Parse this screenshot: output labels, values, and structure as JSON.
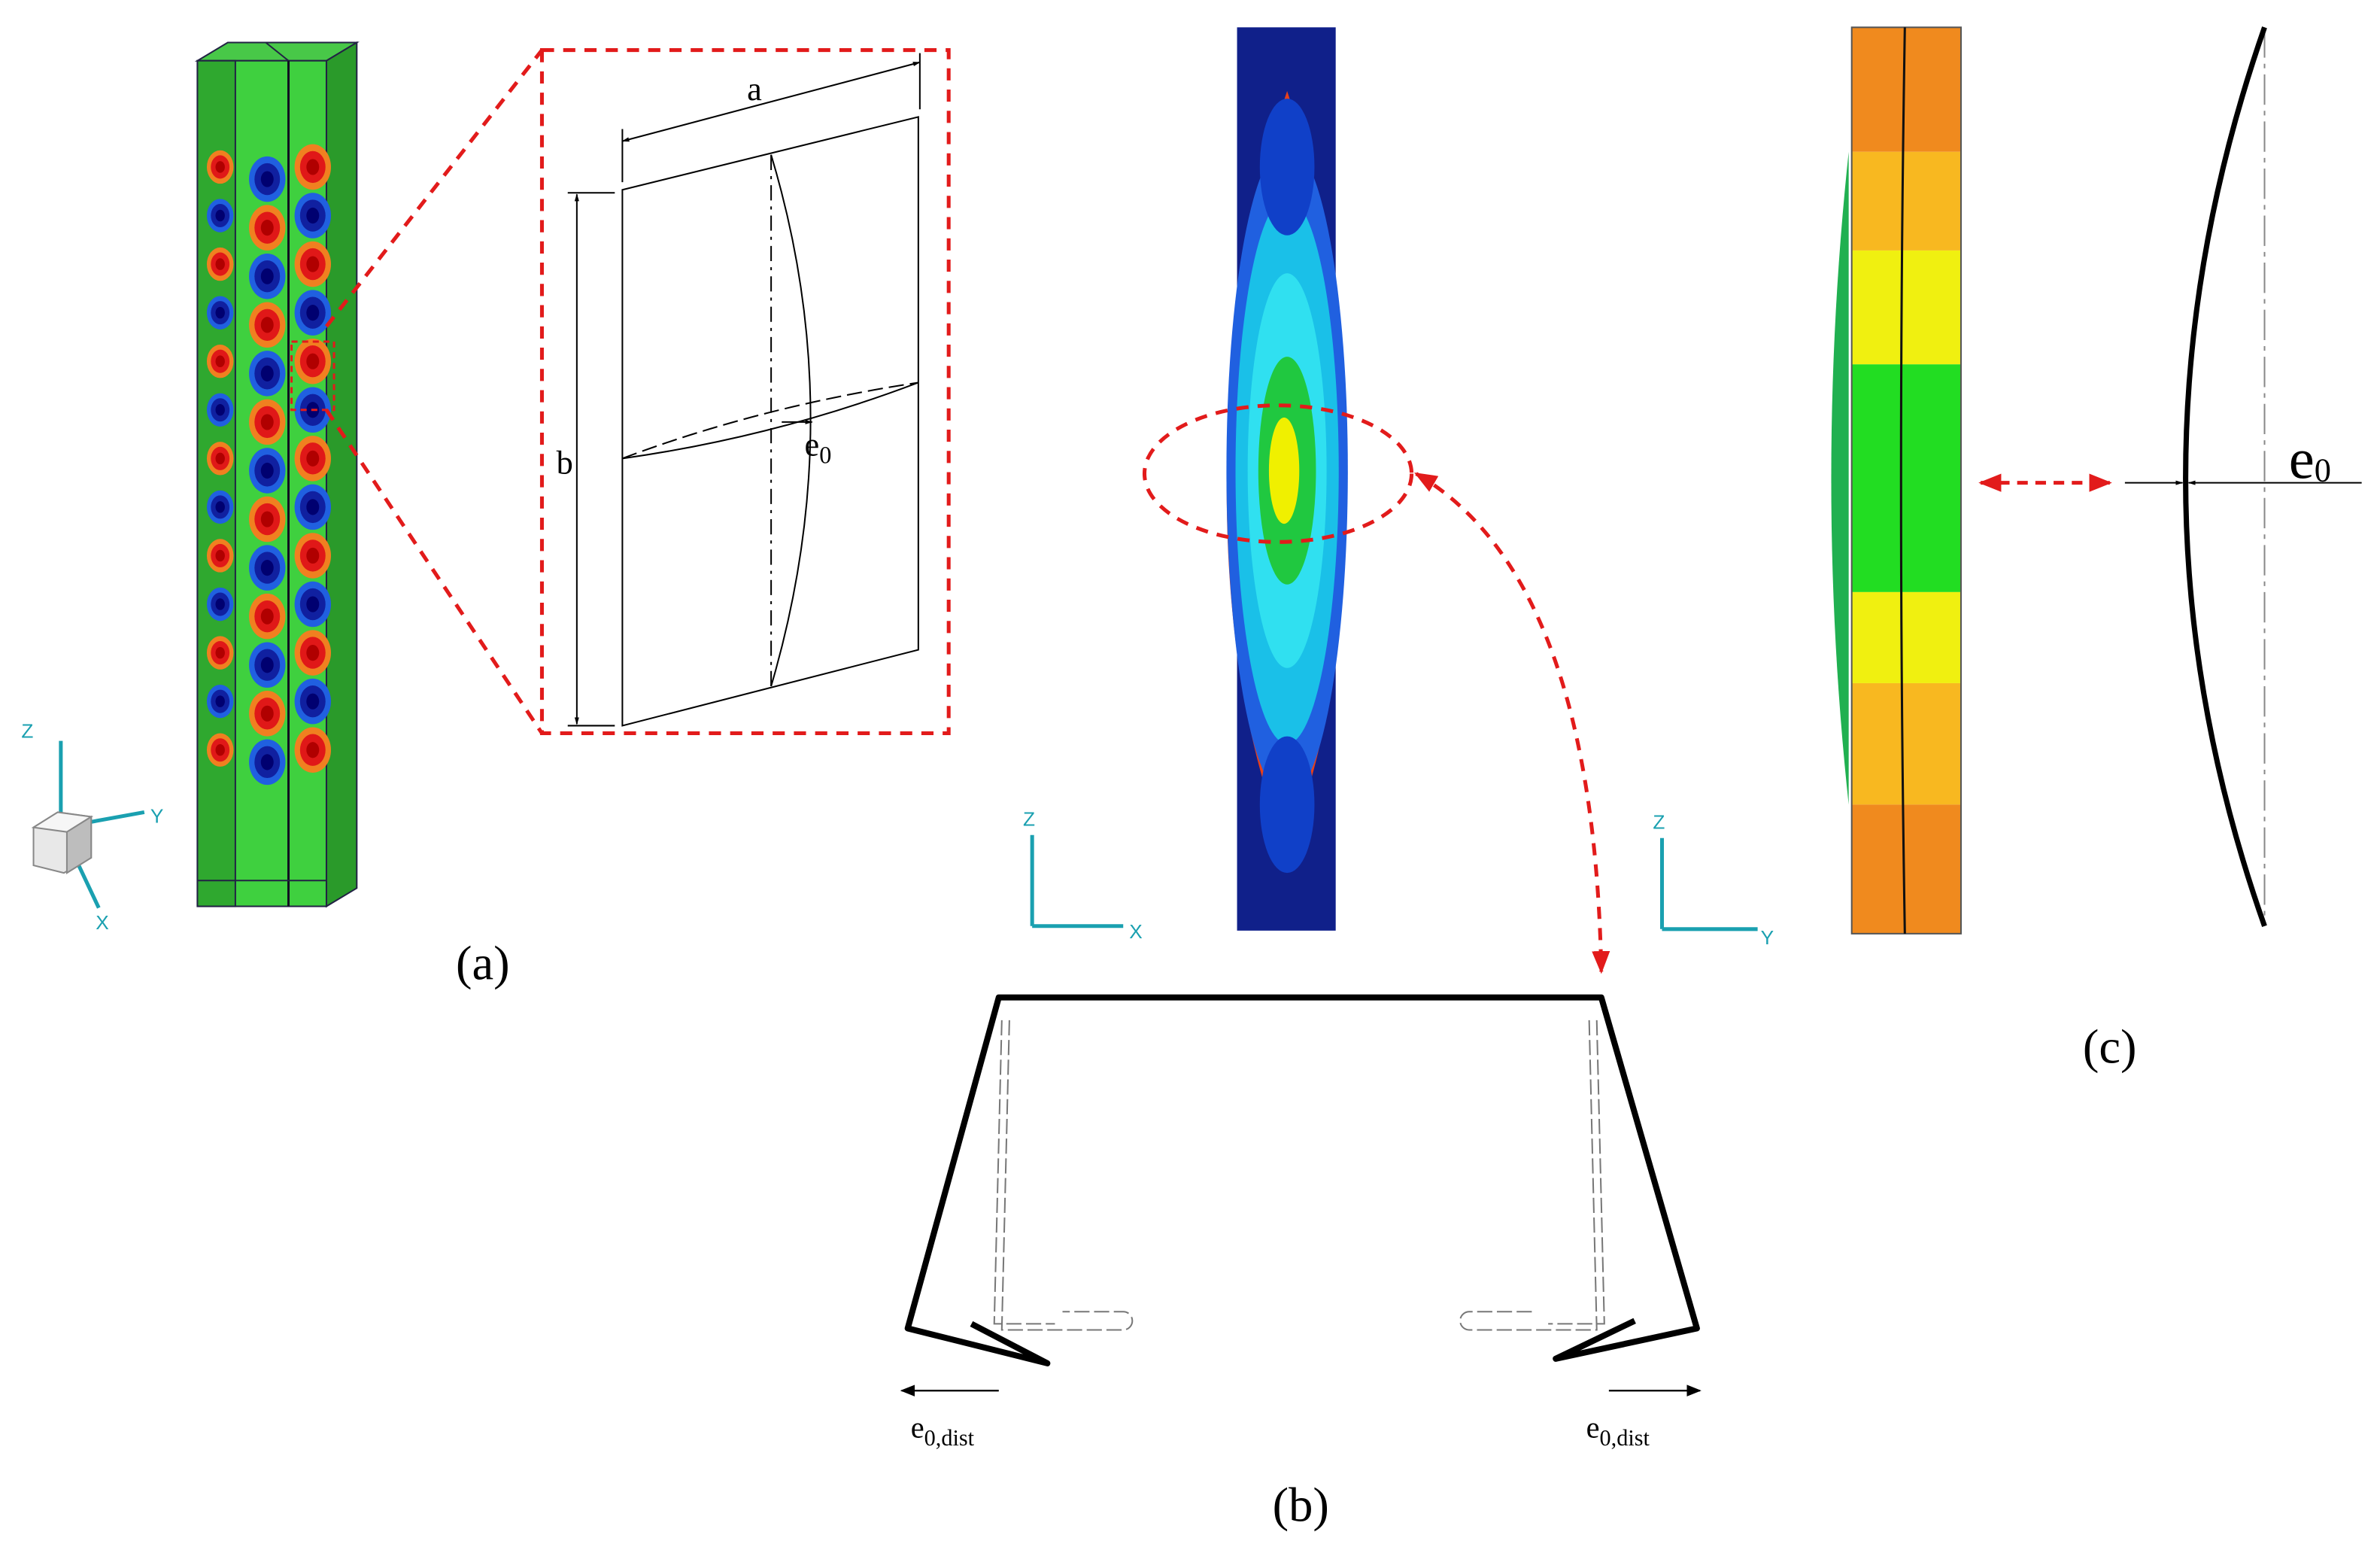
{
  "panel_labels": [
    "(a)",
    "(b)",
    "(c)"
  ],
  "panel_a": {
    "dimension_a": "a",
    "dimension_b": "b",
    "imperfection": {
      "symbol": "e",
      "subscript": "0"
    },
    "axes": {
      "z": "Z",
      "y": "Y",
      "x": "X"
    }
  },
  "panel_b": {
    "axes_front": {
      "z": "Z",
      "x": "X"
    },
    "axes_side": {
      "z": "Z",
      "y": "Y"
    },
    "distortional_left": {
      "symbol": "e",
      "subscript": "0,dist"
    },
    "distortional_right": {
      "symbol": "e",
      "subscript": "0,dist"
    }
  },
  "panel_c": {
    "imperfection": {
      "symbol": "e",
      "subscript": "0"
    }
  }
}
